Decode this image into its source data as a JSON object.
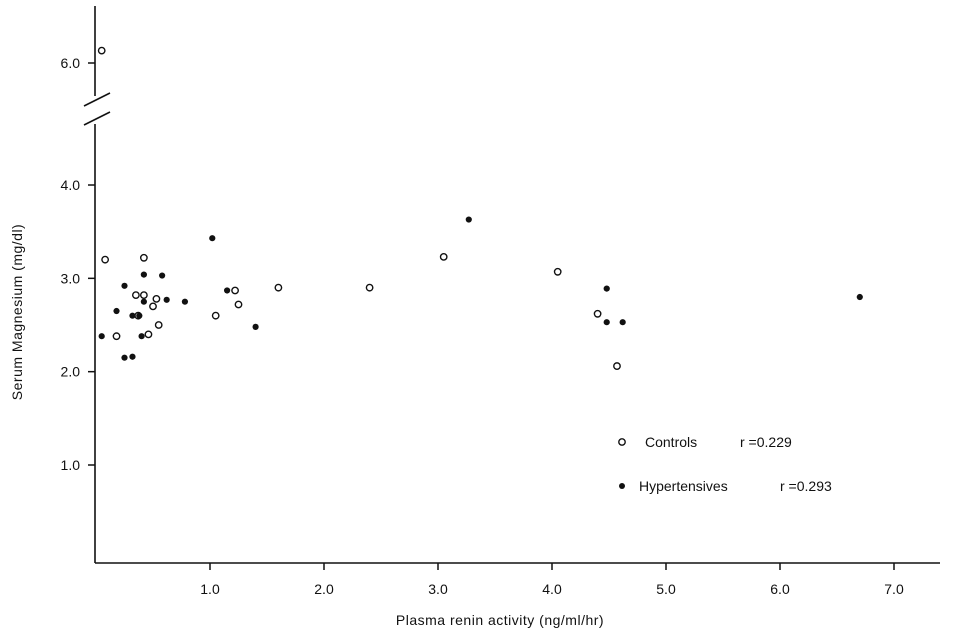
{
  "chart_data": {
    "type": "scatter",
    "xlabel": "Plasma renin activity (ng/ml/hr)",
    "ylabel": "Serum Magnesium (mg/dl)",
    "xlim": [
      0,
      7.5
    ],
    "ylim": [
      1.0,
      6.3
    ],
    "axis_break_y": {
      "from": 4.3,
      "to": 5.8
    },
    "x_ticks": [
      "1.0",
      "2.0",
      "3.0",
      "4.0",
      "5.0",
      "6.0",
      "7.0"
    ],
    "y_ticks": [
      "1.0",
      "2.0",
      "3.0",
      "4.0",
      "6.0"
    ],
    "grid": false,
    "legend_position": "bottom-right",
    "series": [
      {
        "name": "Controls",
        "annotation": "r =0.229",
        "marker": "open-circle",
        "points": [
          [
            0.05,
            6.2
          ],
          [
            0.08,
            3.2
          ],
          [
            0.18,
            2.38
          ],
          [
            0.35,
            2.82
          ],
          [
            0.37,
            2.6
          ],
          [
            0.42,
            3.22
          ],
          [
            0.42,
            2.82
          ],
          [
            0.46,
            2.4
          ],
          [
            0.5,
            2.7
          ],
          [
            0.53,
            2.78
          ],
          [
            0.55,
            2.5
          ],
          [
            1.05,
            2.6
          ],
          [
            1.22,
            2.87
          ],
          [
            1.25,
            2.72
          ],
          [
            1.6,
            2.9
          ],
          [
            2.4,
            2.9
          ],
          [
            3.05,
            3.23
          ],
          [
            4.05,
            3.07
          ],
          [
            4.4,
            2.62
          ],
          [
            4.57,
            2.06
          ]
        ]
      },
      {
        "name": "Hypertensives",
        "annotation": "r =0.293",
        "marker": "filled-circle",
        "points": [
          [
            0.05,
            2.38
          ],
          [
            0.18,
            2.65
          ],
          [
            0.25,
            2.92
          ],
          [
            0.25,
            2.15
          ],
          [
            0.32,
            2.16
          ],
          [
            0.32,
            2.6
          ],
          [
            0.38,
            2.6
          ],
          [
            0.4,
            2.38
          ],
          [
            0.42,
            3.04
          ],
          [
            0.42,
            2.75
          ],
          [
            0.58,
            3.03
          ],
          [
            0.62,
            2.77
          ],
          [
            0.78,
            2.75
          ],
          [
            1.02,
            3.43
          ],
          [
            1.15,
            2.87
          ],
          [
            1.4,
            2.48
          ],
          [
            3.27,
            3.63
          ],
          [
            4.48,
            2.89
          ],
          [
            4.48,
            2.53
          ],
          [
            4.62,
            2.53
          ],
          [
            6.7,
            2.8
          ]
        ]
      }
    ]
  }
}
